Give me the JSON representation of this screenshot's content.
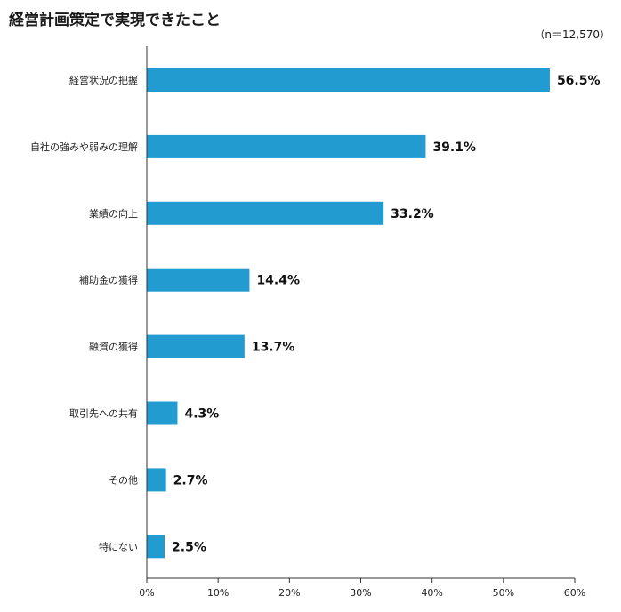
{
  "chart_data": {
    "type": "bar",
    "orientation": "horizontal",
    "title": "経営計画策定で実現できたこと",
    "note": "（n＝12,570）",
    "categories": [
      "経営状況の把握",
      "自社の強みや弱みの理解",
      "業績の向上",
      "補助金の獲得",
      "融資の獲得",
      "取引先への共有",
      "その他",
      "特にない"
    ],
    "values": [
      56.5,
      39.1,
      33.2,
      14.4,
      13.7,
      4.3,
      2.7,
      2.5
    ],
    "value_labels": [
      "56.5%",
      "39.1%",
      "33.2%",
      "14.4%",
      "13.7%",
      "4.3%",
      "2.7%",
      "2.5%"
    ],
    "xlim": [
      0,
      60
    ],
    "ticks": [
      0,
      10,
      20,
      30,
      40,
      50,
      60
    ],
    "tick_labels": [
      "0%",
      "10%",
      "20%",
      "30%",
      "40%",
      "50%",
      "60%"
    ],
    "bar_color": "#229bd0",
    "grid": false
  }
}
